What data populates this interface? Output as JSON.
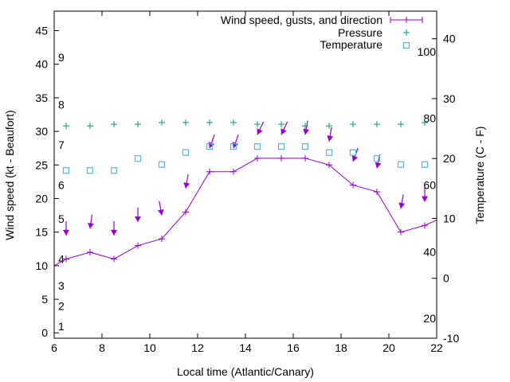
{
  "chart_data": {
    "type": "line",
    "xlabel": "Local time (Atlantic/Canary)",
    "ylabel": "Wind speed (kt - Beaufort)",
    "y2label": "Temperature (C - F)",
    "xlim": [
      6,
      22
    ],
    "ylim": [
      -0.8,
      47.9
    ],
    "y2lim": [
      -10,
      44.6
    ],
    "x_ticks": [
      "6",
      "8",
      "10",
      "12",
      "14",
      "16",
      "18",
      "20",
      "22"
    ],
    "y_ticks": [
      "0",
      "5",
      "10",
      "15",
      "20",
      "25",
      "30",
      "35",
      "40",
      "45"
    ],
    "y2_ticks": [
      "-10",
      "0",
      "10",
      "20",
      "30",
      "40"
    ],
    "beaufort_labels": [
      {
        "label": "1",
        "kt": 1
      },
      {
        "label": "2",
        "kt": 4
      },
      {
        "label": "3",
        "kt": 7
      },
      {
        "label": "4",
        "kt": 11
      },
      {
        "label": "5",
        "kt": 17
      },
      {
        "label": "6",
        "kt": 22
      },
      {
        "label": "7",
        "kt": 28
      },
      {
        "label": "8",
        "kt": 34
      },
      {
        "label": "9",
        "kt": 41
      }
    ],
    "fahrenheit_labels": [
      {
        "label": "20",
        "c": -6.7
      },
      {
        "label": "40",
        "c": 4.4
      },
      {
        "label": "60",
        "c": 15.6
      },
      {
        "label": "80",
        "c": 26.7
      },
      {
        "label": "100",
        "c": 37.8
      }
    ],
    "legend": [
      "Wind speed, gusts, and direction",
      "Pressure",
      "Temperature"
    ],
    "legend_position": "top-right",
    "series": [
      {
        "name": "Wind speed",
        "color": "#9400d3",
        "x": [
          6,
          6.5,
          7.5,
          8.5,
          9.5,
          10.5,
          11.5,
          12.5,
          13.5,
          14.5,
          15.5,
          16.5,
          17.5,
          18.5,
          19.5,
          20.5,
          21.5,
          22
        ],
        "y": [
          10,
          11,
          12,
          11,
          13,
          14,
          18,
          24,
          24,
          26,
          26,
          26,
          25,
          22,
          21,
          15,
          16,
          16.8
        ]
      },
      {
        "name": "Gusts",
        "color": "#9400d3",
        "x": [
          6.5,
          7.5,
          8.5,
          9.5,
          10.5,
          11.5,
          12.5,
          13.5,
          14.5,
          15.5,
          16.5,
          17.5,
          18.5,
          19.5,
          20.5,
          21.5
        ],
        "y": [
          14.5,
          15.5,
          14.5,
          16.5,
          17.5,
          21.5,
          27.5,
          27.5,
          29.5,
          29.5,
          29.5,
          28.5,
          25.5,
          24.5,
          18.5,
          19.5
        ],
        "direction_deg": [
          0,
          8,
          0,
          0,
          350,
          10,
          20,
          20,
          25,
          25,
          10,
          10,
          20,
          12,
          10,
          0
        ]
      },
      {
        "name": "Pressure",
        "color": "#009e73",
        "x": [
          6.5,
          7.5,
          8.5,
          9.5,
          10.5,
          11.5,
          12.5,
          13.5,
          14.5,
          15.5,
          16.5,
          17.5,
          18.5,
          19.5,
          20.5,
          21.5
        ],
        "y": [
          77.8,
          77.8,
          78.3,
          78.3,
          78.8,
          78.8,
          78.8,
          78.8,
          78.3,
          78.3,
          77.8,
          77.8,
          78.3,
          78.3,
          78.3,
          78.8
        ]
      },
      {
        "name": "Temperature",
        "color": "#56b4e9",
        "x": [
          6.5,
          7.5,
          8.5,
          9.5,
          10.5,
          11.5,
          12.5,
          13.5,
          14.5,
          15.5,
          16.5,
          17.5,
          18.5,
          19.5,
          20.5,
          21.5
        ],
        "y": [
          18,
          18,
          18,
          20,
          19,
          21,
          22,
          22,
          22,
          22,
          22,
          21,
          21,
          20,
          19,
          19
        ]
      }
    ]
  }
}
